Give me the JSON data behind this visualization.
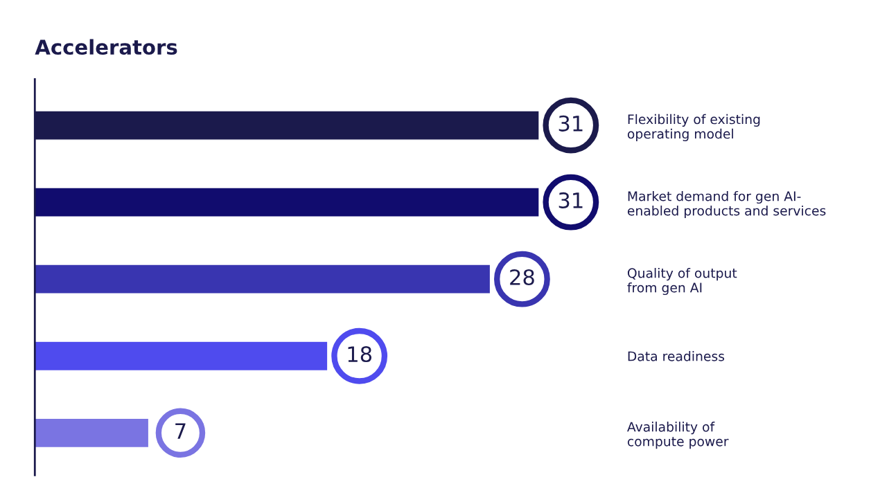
{
  "chart_data": {
    "type": "bar",
    "orientation": "horizontal",
    "title": "Accelerators",
    "categories": [
      "Flexibility of existing\noperating model",
      "Market demand for gen AI-\nenabled products and services",
      "Quality of output\nfrom gen AI",
      "Data readiness",
      "Availability of\ncompute power"
    ],
    "values": [
      31,
      31,
      28,
      18,
      7
    ],
    "colors": [
      "#1b1a4c",
      "#110c6e",
      "#3935b0",
      "#4f4bee",
      "#7a74e2"
    ],
    "data_labels": true
  }
}
